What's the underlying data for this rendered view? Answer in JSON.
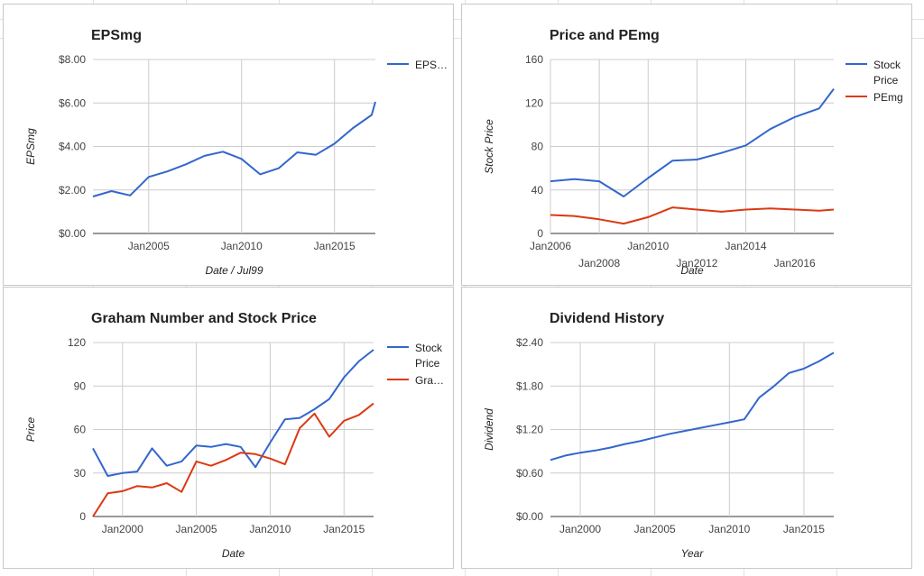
{
  "colors": {
    "blue": "#3366cc",
    "red": "#dc3912",
    "grid": "#cccccc",
    "text": "#222222",
    "muted": "#444444"
  },
  "chart_data": [
    {
      "type": "line",
      "title": "EPSmg",
      "xlabel": "Date / Jul99",
      "ylabel": "EPSmg",
      "x_ticks": [
        "Jan2005",
        "Jan2010",
        "Jan2015"
      ],
      "x_tick_years": [
        2005,
        2010,
        2015
      ],
      "y_ticks": [
        "$0.00",
        "$2.00",
        "$4.00",
        "$6.00",
        "$8.00"
      ],
      "xlim": [
        2002.0,
        2017.2
      ],
      "ylim": [
        0,
        8
      ],
      "grid": true,
      "legend": "right",
      "x": [
        2002.0,
        2003.0,
        2004.0,
        2005.0,
        2006.0,
        2007.0,
        2008.0,
        2009.0,
        2010.0,
        2011.0,
        2012.0,
        2013.0,
        2014.0,
        2015.0,
        2016.0,
        2017.0,
        2017.2
      ],
      "series": [
        {
          "name": "EPS…",
          "color": "blue",
          "values": [
            1.7,
            1.95,
            1.75,
            2.6,
            2.85,
            3.18,
            3.57,
            3.76,
            3.43,
            2.72,
            3.0,
            3.73,
            3.62,
            4.13,
            4.85,
            5.45,
            6.05
          ]
        }
      ]
    },
    {
      "type": "line",
      "title": "Price and PEmg",
      "xlabel": "Date",
      "ylabel": "Stock Price",
      "x_ticks": [
        "Jan2006",
        "Jan2008",
        "Jan2010",
        "Jan2012",
        "Jan2014",
        "Jan2016"
      ],
      "x_tick_years": [
        2006,
        2008,
        2010,
        2012,
        2014,
        2016
      ],
      "y_ticks": [
        "0",
        "40",
        "80",
        "120",
        "160"
      ],
      "xlim": [
        2006.0,
        2017.6
      ],
      "ylim": [
        0,
        160
      ],
      "grid": true,
      "legend": "right",
      "x": [
        2006,
        2007,
        2008,
        2009,
        2010,
        2011,
        2012,
        2013,
        2014,
        2015,
        2016,
        2017,
        2017.6
      ],
      "series": [
        {
          "name": "Stock Price",
          "color": "blue",
          "values": [
            48,
            50,
            48,
            34,
            51,
            67,
            68,
            74,
            81,
            96,
            107,
            115,
            133
          ]
        },
        {
          "name": "PEmg",
          "color": "red",
          "values": [
            17,
            16,
            13,
            9,
            15,
            24,
            22,
            20,
            22,
            23,
            22,
            21,
            22
          ]
        }
      ]
    },
    {
      "type": "line",
      "title": "Graham Number and Stock Price",
      "xlabel": "Date",
      "ylabel": "Price",
      "x_ticks": [
        "Jan2000",
        "Jan2005",
        "Jan2010",
        "Jan2015"
      ],
      "x_tick_years": [
        2000,
        2005,
        2010,
        2015
      ],
      "y_ticks": [
        "0",
        "30",
        "60",
        "90",
        "120"
      ],
      "xlim": [
        1998.0,
        2017.0
      ],
      "ylim": [
        0,
        120
      ],
      "grid": true,
      "legend": "right",
      "x": [
        1998,
        1999,
        2000,
        2001,
        2002,
        2003,
        2004,
        2005,
        2006,
        2007,
        2008,
        2009,
        2010,
        2011,
        2012,
        2013,
        2014,
        2015,
        2016,
        2017
      ],
      "series": [
        {
          "name": "Stock Price",
          "color": "blue",
          "values": [
            47,
            28,
            30,
            31,
            47,
            35,
            38,
            49,
            48,
            50,
            48,
            34,
            51,
            67,
            68,
            74,
            81,
            96,
            107,
            115
          ]
        },
        {
          "name": "Gra…",
          "color": "red",
          "values": [
            0,
            16,
            17.5,
            21,
            20,
            23,
            17,
            38,
            35,
            39,
            44,
            43,
            40,
            36,
            61,
            71,
            55,
            66,
            70,
            78
          ]
        }
      ]
    },
    {
      "type": "line",
      "title": "Dividend History",
      "xlabel": "Year",
      "ylabel": "Dividend",
      "x_ticks": [
        "Jan2000",
        "Jan2005",
        "Jan2010",
        "Jan2015"
      ],
      "x_tick_years": [
        2000,
        2005,
        2010,
        2015
      ],
      "y_ticks": [
        "$0.00",
        "$0.60",
        "$1.20",
        "$1.80",
        "$2.40"
      ],
      "xlim": [
        1998.0,
        2017.0
      ],
      "ylim": [
        0,
        2.4
      ],
      "grid": true,
      "legend": "none",
      "x": [
        1998,
        1999,
        2000,
        2001,
        2002,
        2003,
        2004,
        2005,
        2006,
        2007,
        2008,
        2009,
        2010,
        2011,
        2012,
        2013,
        2014,
        2015,
        2016,
        2017
      ],
      "series": [
        {
          "name": "",
          "color": "blue",
          "values": [
            0.78,
            0.84,
            0.88,
            0.91,
            0.95,
            1.0,
            1.04,
            1.09,
            1.14,
            1.18,
            1.22,
            1.26,
            1.3,
            1.34,
            1.64,
            1.8,
            1.98,
            2.04,
            2.14,
            2.26
          ]
        }
      ]
    }
  ]
}
